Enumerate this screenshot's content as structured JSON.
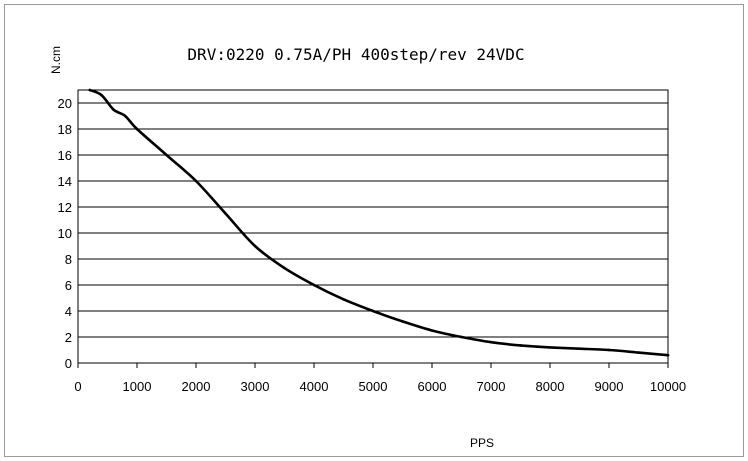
{
  "chart_data": {
    "type": "line",
    "title": "DRV:0220 0.75A/PH 400step/rev 24VDC",
    "xlabel": "PPS",
    "ylabel": "N.cm",
    "xlim": [
      0,
      10000
    ],
    "ylim": [
      0,
      21
    ],
    "x_ticks": [
      "0",
      "1000",
      "2000",
      "3000",
      "4000",
      "5000",
      "6000",
      "7000",
      "8000",
      "9000",
      "10000"
    ],
    "y_ticks": [
      "0",
      "2",
      "4",
      "6",
      "8",
      "10",
      "12",
      "14",
      "16",
      "18",
      "20"
    ],
    "grid": "horizontal",
    "series": [
      {
        "color": "#000000",
        "x": [
          200,
          400,
          600,
          800,
          1000,
          1500,
          2000,
          2500,
          3000,
          3500,
          4000,
          4500,
          5000,
          5500,
          6000,
          6500,
          7000,
          7500,
          8000,
          8500,
          9000,
          9500,
          10000
        ],
        "y": [
          21,
          20.6,
          19.5,
          19.0,
          18.0,
          16.0,
          14.0,
          11.5,
          9.0,
          7.3,
          6.0,
          4.9,
          4.0,
          3.2,
          2.5,
          2.0,
          1.6,
          1.35,
          1.2,
          1.1,
          1.0,
          0.8,
          0.6
        ]
      }
    ]
  }
}
